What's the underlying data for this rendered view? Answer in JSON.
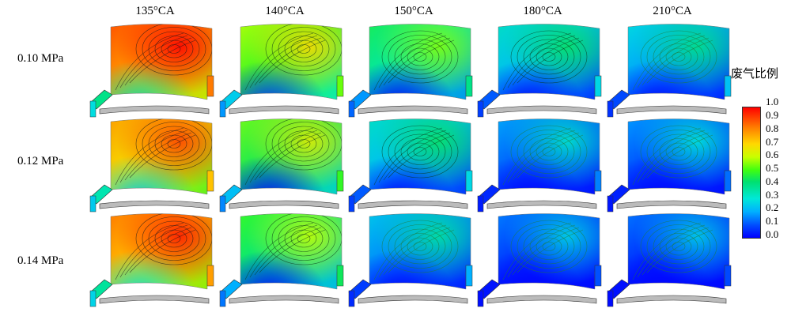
{
  "columns": [
    "135°CA",
    "140°CA",
    "150°CA",
    "180°CA",
    "210°CA"
  ],
  "rows": [
    "0.10 MPa",
    "0.12 MPa",
    "0.14 MPa"
  ],
  "legend": {
    "title": "废气比例",
    "ticks": [
      "1.0",
      "0.9",
      "0.8",
      "0.7",
      "0.6",
      "0.5",
      "0.4",
      "0.3",
      "0.2",
      "0.1",
      "0.0"
    ]
  },
  "colors": {
    "high": "#ff0000",
    "mid": "#40ff10",
    "low": "#0000ff"
  },
  "cells": [
    [
      {
        "mix": 0.8
      },
      {
        "mix": 0.5
      },
      {
        "mix": 0.35
      },
      {
        "mix": 0.22
      },
      {
        "mix": 0.18
      }
    ],
    [
      {
        "mix": 0.7
      },
      {
        "mix": 0.45
      },
      {
        "mix": 0.22
      },
      {
        "mix": 0.1
      },
      {
        "mix": 0.08
      }
    ],
    [
      {
        "mix": 0.75
      },
      {
        "mix": 0.4
      },
      {
        "mix": 0.15
      },
      {
        "mix": 0.05
      },
      {
        "mix": 0.04
      }
    ]
  ]
}
